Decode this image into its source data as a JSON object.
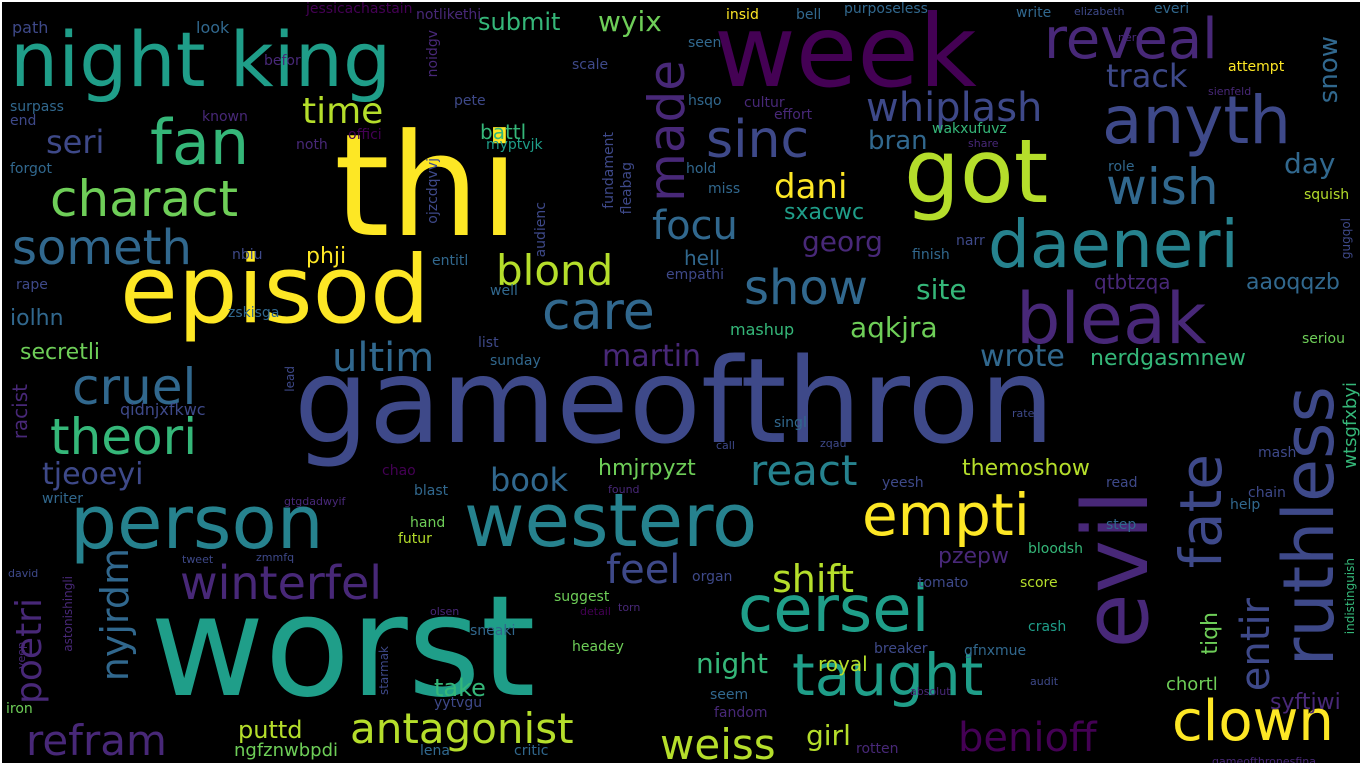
{
  "palette": {
    "background": "#000000",
    "colors": {
      "yellow": "#fde725",
      "lime": "#b5de2b",
      "green": "#6ece58",
      "seagreen": "#35b779",
      "teal": "#1f9e89",
      "cyan": "#26828e",
      "blue": "#31688e",
      "indigo": "#3e4989",
      "violet": "#482878",
      "purple": "#440154"
    }
  },
  "words": [
    {
      "text": "worst",
      "c": "teal"
    },
    {
      "text": "gameofthron",
      "c": "indigo"
    },
    {
      "text": "thi",
      "c": "yellow"
    },
    {
      "text": "week",
      "c": "purple"
    },
    {
      "text": "night king",
      "c": "teal"
    },
    {
      "text": "episod",
      "c": "yellow"
    },
    {
      "text": "evil",
      "c": "violet"
    },
    {
      "text": "got",
      "c": "lime"
    },
    {
      "text": "westero",
      "c": "cyan"
    },
    {
      "text": "person",
      "c": "cyan"
    },
    {
      "text": "ruthless",
      "c": "indigo"
    },
    {
      "text": "daeneri",
      "c": "cyan"
    },
    {
      "text": "anyth",
      "c": "indigo"
    },
    {
      "text": "fan",
      "c": "seagreen"
    },
    {
      "text": "bleak",
      "c": "violet"
    },
    {
      "text": "cersei",
      "c": "teal"
    },
    {
      "text": "empti",
      "c": "yellow"
    },
    {
      "text": "reveal",
      "c": "violet"
    },
    {
      "text": "taught",
      "c": "teal"
    },
    {
      "text": "fate",
      "c": "indigo"
    },
    {
      "text": "clown",
      "c": "yellow"
    },
    {
      "text": "charact",
      "c": "green"
    },
    {
      "text": "someth",
      "c": "blue"
    },
    {
      "text": "theori",
      "c": "seagreen"
    },
    {
      "text": "cruel",
      "c": "blue"
    },
    {
      "text": "winterfel",
      "c": "violet"
    },
    {
      "text": "sinc",
      "c": "indigo"
    },
    {
      "text": "wish",
      "c": "blue"
    },
    {
      "text": "made",
      "c": "violet"
    },
    {
      "text": "show",
      "c": "blue"
    },
    {
      "text": "care",
      "c": "blue"
    },
    {
      "text": "antagonist",
      "c": "lime"
    },
    {
      "text": "weiss",
      "c": "lime"
    },
    {
      "text": "refram",
      "c": "violet"
    },
    {
      "text": "benioff",
      "c": "purple"
    },
    {
      "text": "whiplash",
      "c": "indigo"
    },
    {
      "text": "react",
      "c": "cyan"
    },
    {
      "text": "focu",
      "c": "blue"
    },
    {
      "text": "ultim",
      "c": "blue"
    },
    {
      "text": "blond",
      "c": "lime"
    },
    {
      "text": "shift",
      "c": "lime"
    },
    {
      "text": "feel",
      "c": "indigo"
    },
    {
      "text": "entir",
      "c": "indigo"
    },
    {
      "text": "nyjrdm",
      "c": "blue"
    },
    {
      "text": "poetri",
      "c": "violet"
    },
    {
      "text": "time",
      "c": "lime"
    },
    {
      "text": "dani",
      "c": "yellow"
    },
    {
      "text": "track",
      "c": "indigo"
    },
    {
      "text": "book",
      "c": "blue"
    },
    {
      "text": "seri",
      "c": "indigo"
    },
    {
      "text": "martin",
      "c": "violet"
    },
    {
      "text": "georg",
      "c": "violet"
    },
    {
      "text": "aqkjra",
      "c": "green"
    },
    {
      "text": "wrote",
      "c": "blue"
    },
    {
      "text": "site",
      "c": "seagreen"
    },
    {
      "text": "tjeoeyi",
      "c": "indigo"
    },
    {
      "text": "night",
      "c": "seagreen"
    },
    {
      "text": "girl",
      "c": "lime"
    },
    {
      "text": "take",
      "c": "seagreen"
    },
    {
      "text": "puttd",
      "c": "lime"
    },
    {
      "text": "submit",
      "c": "seagreen"
    },
    {
      "text": "wyix",
      "c": "green"
    },
    {
      "text": "bran",
      "c": "blue"
    },
    {
      "text": "day",
      "c": "blue"
    },
    {
      "text": "snow",
      "c": "blue"
    },
    {
      "text": "secretli",
      "c": "green"
    },
    {
      "text": "iolhn",
      "c": "blue"
    },
    {
      "text": "themoshow",
      "c": "lime"
    },
    {
      "text": "hmjrpyzt",
      "c": "green"
    },
    {
      "text": "nerdgasmnew",
      "c": "seagreen"
    },
    {
      "text": "sxacwc",
      "c": "teal"
    },
    {
      "text": "phji",
      "c": "yellow"
    },
    {
      "text": "pzepw",
      "c": "violet"
    },
    {
      "text": "syftjwi",
      "c": "violet"
    },
    {
      "text": "aaoqqzb",
      "c": "blue"
    },
    {
      "text": "qtbtzqa",
      "c": "violet"
    },
    {
      "text": "tiqh",
      "c": "green"
    },
    {
      "text": "royal",
      "c": "lime"
    },
    {
      "text": "hell",
      "c": "blue"
    },
    {
      "text": "battl",
      "c": "seagreen"
    },
    {
      "text": "ngfznwbpdi",
      "c": "green"
    },
    {
      "text": "chortl",
      "c": "green"
    },
    {
      "text": "mashup",
      "c": "seagreen"
    },
    {
      "text": "racist",
      "c": "violet"
    },
    {
      "text": "qidnjxfkwc",
      "c": "indigo"
    },
    {
      "text": "path",
      "c": "indigo"
    },
    {
      "text": "look",
      "c": "blue"
    },
    {
      "text": "jessicachastain",
      "c": "purple"
    },
    {
      "text": "notlikethi",
      "c": "violet"
    },
    {
      "text": "insid",
      "c": "yellow"
    },
    {
      "text": "bell",
      "c": "blue"
    },
    {
      "text": "purposeless",
      "c": "blue"
    },
    {
      "text": "write",
      "c": "blue"
    },
    {
      "text": "elizabeth",
      "c": "indigo"
    },
    {
      "text": "everi",
      "c": "blue"
    },
    {
      "text": "attempt",
      "c": "yellow"
    },
    {
      "text": "befor",
      "c": "violet"
    },
    {
      "text": "noidgv",
      "c": "violet"
    },
    {
      "text": "seen",
      "c": "blue"
    },
    {
      "text": "scale",
      "c": "indigo"
    },
    {
      "text": "surpass",
      "c": "blue"
    },
    {
      "text": "pete",
      "c": "indigo"
    },
    {
      "text": "hsqo",
      "c": "blue"
    },
    {
      "text": "cultur",
      "c": "violet"
    },
    {
      "text": "known",
      "c": "violet"
    },
    {
      "text": "end",
      "c": "indigo"
    },
    {
      "text": "offici",
      "c": "purple"
    },
    {
      "text": "noth",
      "c": "violet"
    },
    {
      "text": "myptvjk",
      "c": "teal"
    },
    {
      "text": "effort",
      "c": "violet"
    },
    {
      "text": "wakxufuvz",
      "c": "seagreen"
    },
    {
      "text": "forgot",
      "c": "blue"
    },
    {
      "text": "fundament",
      "c": "indigo"
    },
    {
      "text": "fleabag",
      "c": "indigo"
    },
    {
      "text": "hold",
      "c": "blue"
    },
    {
      "text": "miss",
      "c": "blue"
    },
    {
      "text": "role",
      "c": "blue"
    },
    {
      "text": "squish",
      "c": "lime"
    },
    {
      "text": "ojzcdqvvj",
      "c": "indigo"
    },
    {
      "text": "audienc",
      "c": "indigo"
    },
    {
      "text": "nbiu",
      "c": "indigo"
    },
    {
      "text": "entitl",
      "c": "blue"
    },
    {
      "text": "narr",
      "c": "indigo"
    },
    {
      "text": "finish",
      "c": "blue"
    },
    {
      "text": "rape",
      "c": "indigo"
    },
    {
      "text": "empathi",
      "c": "indigo"
    },
    {
      "text": "well",
      "c": "blue"
    },
    {
      "text": "zskisga",
      "c": "blue"
    },
    {
      "text": "list",
      "c": "indigo"
    },
    {
      "text": "sunday",
      "c": "blue"
    },
    {
      "text": "seriou",
      "c": "green"
    },
    {
      "text": "singl",
      "c": "blue"
    },
    {
      "text": "rate",
      "c": "indigo"
    },
    {
      "text": "mash",
      "c": "indigo"
    },
    {
      "text": "writer",
      "c": "blue"
    },
    {
      "text": "chao",
      "c": "purple"
    },
    {
      "text": "blast",
      "c": "blue"
    },
    {
      "text": "yeesh",
      "c": "indigo"
    },
    {
      "text": "read",
      "c": "indigo"
    },
    {
      "text": "chain",
      "c": "indigo"
    },
    {
      "text": "help",
      "c": "blue"
    },
    {
      "text": "hand",
      "c": "green"
    },
    {
      "text": "futur",
      "c": "lime"
    },
    {
      "text": "step",
      "c": "blue"
    },
    {
      "text": "bloodsh",
      "c": "seagreen"
    },
    {
      "text": "tweet",
      "c": "indigo"
    },
    {
      "text": "organ",
      "c": "indigo"
    },
    {
      "text": "tomato",
      "c": "indigo"
    },
    {
      "text": "score",
      "c": "lime"
    },
    {
      "text": "suggest",
      "c": "green"
    },
    {
      "text": "crash",
      "c": "teal"
    },
    {
      "text": "sneaki",
      "c": "blue"
    },
    {
      "text": "headey",
      "c": "green"
    },
    {
      "text": "breaker",
      "c": "indigo"
    },
    {
      "text": "gfnxmue",
      "c": "blue"
    },
    {
      "text": "seem",
      "c": "blue"
    },
    {
      "text": "fandom",
      "c": "violet"
    },
    {
      "text": "yytvgu",
      "c": "indigo"
    },
    {
      "text": "iron",
      "c": "green"
    },
    {
      "text": "lena",
      "c": "blue"
    },
    {
      "text": "critic",
      "c": "blue"
    },
    {
      "text": "rotten",
      "c": "violet"
    },
    {
      "text": "david",
      "c": "indigo"
    },
    {
      "text": "olsen",
      "c": "violet"
    },
    {
      "text": "zmmfq",
      "c": "indigo"
    },
    {
      "text": "indistinguish",
      "c": "seagreen"
    },
    {
      "text": "astonishingli",
      "c": "violet"
    },
    {
      "text": "starmak",
      "c": "indigo"
    },
    {
      "text": "absolut",
      "c": "violet"
    },
    {
      "text": "audit",
      "c": "indigo"
    },
    {
      "text": "gameofthronesfina",
      "c": "violet"
    },
    {
      "text": "call",
      "c": "indigo"
    },
    {
      "text": "lead",
      "c": "indigo"
    },
    {
      "text": "found",
      "c": "violet"
    },
    {
      "text": "detail",
      "c": "purple"
    },
    {
      "text": "torn",
      "c": "violet"
    },
    {
      "text": "sienfeld",
      "c": "violet"
    },
    {
      "text": "nerd",
      "c": "violet"
    },
    {
      "text": "share",
      "c": "violet"
    },
    {
      "text": "zqau",
      "c": "indigo"
    },
    {
      "text": "veep",
      "c": "violet"
    },
    {
      "text": "wtsgfxbyi",
      "c": "seagreen"
    },
    {
      "text": "gtgdadwyif",
      "c": "violet"
    },
    {
      "text": "gugqol",
      "c": "indigo"
    }
  ]
}
